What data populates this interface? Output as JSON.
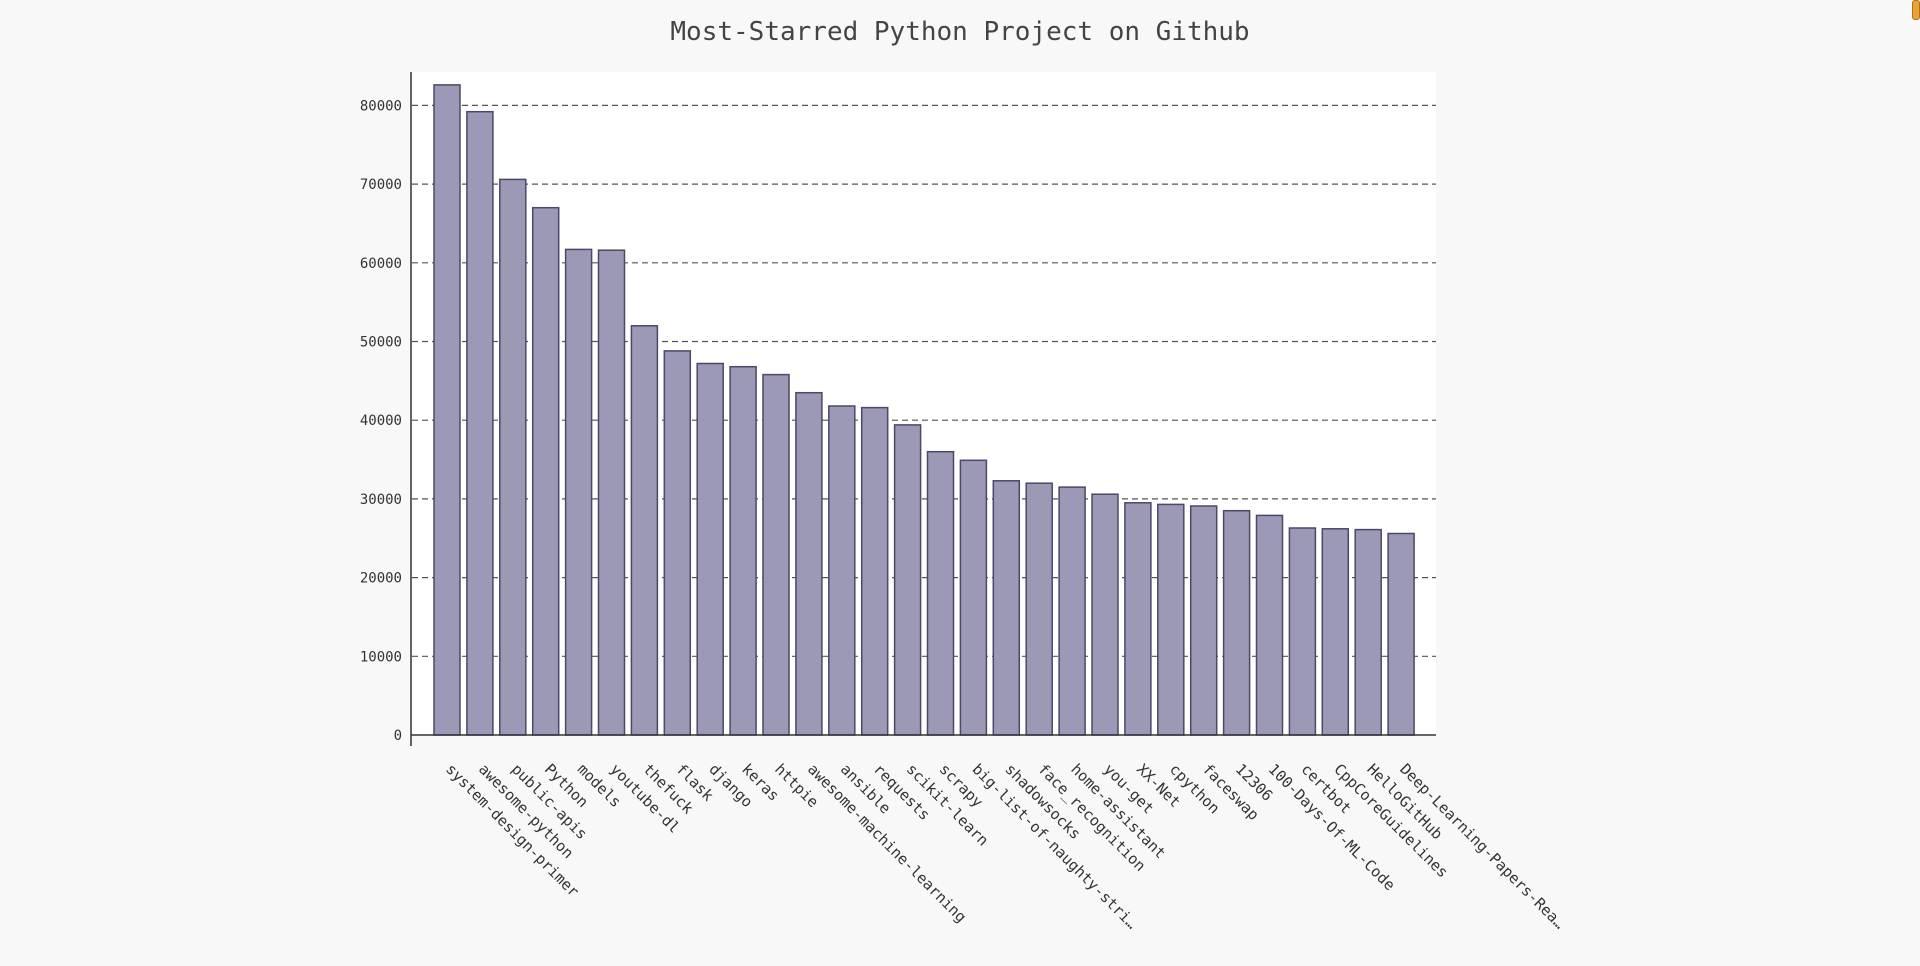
{
  "colors": {
    "page_background": "#f8f8f8",
    "plot_background": "#ffffff",
    "bar_fill": "#9b99b5",
    "bar_stroke": "#4b4868",
    "grid": "#555555",
    "text": "#333333"
  },
  "chart_data": {
    "type": "bar",
    "title": "Most-Starred Python Project on Github",
    "xlabel": "",
    "ylabel": "",
    "ylim": [
      0,
      85000
    ],
    "yticks": [
      0,
      10000,
      20000,
      30000,
      40000,
      50000,
      60000,
      70000,
      80000
    ],
    "grid": true,
    "legend": "none",
    "categories": [
      "system-design-primer",
      "awesome-python",
      "public-apis",
      "Python",
      "models",
      "youtube-dl",
      "thefuck",
      "flask",
      "django",
      "keras",
      "httpie",
      "awesome-machine-learning",
      "ansible",
      "requests",
      "scikit-learn",
      "scrapy",
      "big-list-of-naughty-stri…",
      "shadowsocks",
      "face_recognition",
      "home-assistant",
      "you-get",
      "XX-Net",
      "cpython",
      "faceswap",
      "12306",
      "100-Days-Of-ML-Code",
      "certbot",
      "CppCoreGuidelines",
      "HelloGitHub",
      "Deep-Learning-Papers-Rea…"
    ],
    "values": [
      82600,
      79200,
      70600,
      67000,
      61700,
      61600,
      52000,
      48800,
      47200,
      46800,
      45800,
      43500,
      41800,
      41600,
      39400,
      36000,
      34900,
      32300,
      32000,
      31500,
      30600,
      29500,
      29300,
      29100,
      28500,
      27900,
      26300,
      26200,
      26100,
      25600
    ]
  }
}
